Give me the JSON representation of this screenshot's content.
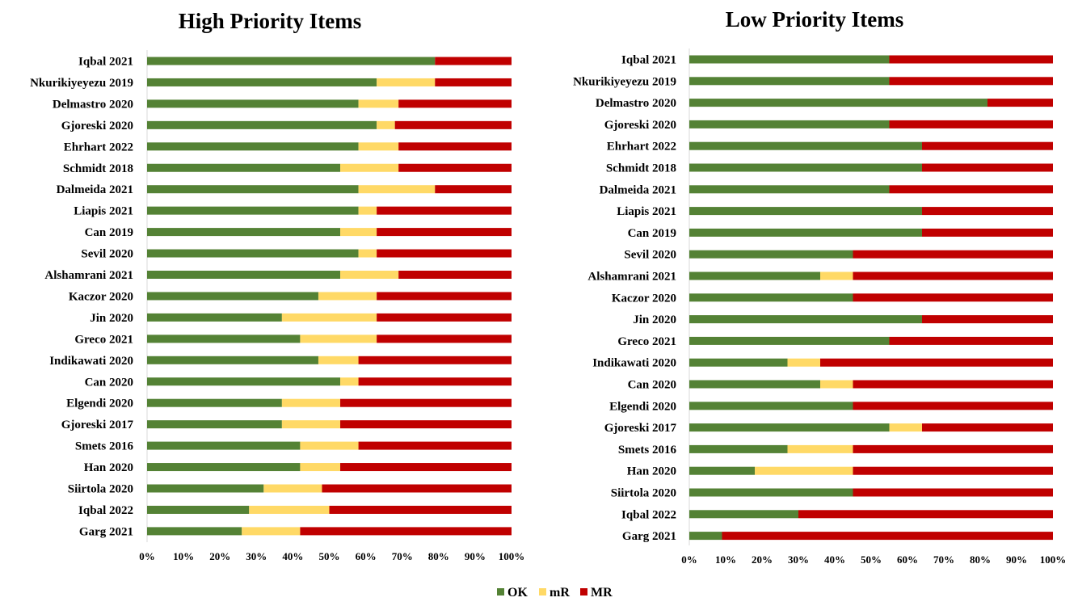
{
  "chart_data": [
    {
      "type": "bar",
      "orientation": "horizontal",
      "stacked": "percent",
      "title": "High Priority Items",
      "categories": [
        "Iqbal 2021",
        "Nkurikiyeyezu 2019",
        "Delmastro 2020",
        "Gjoreski 2020",
        "Ehrhart 2022",
        "Schmidt 2018",
        "Dalmeida 2021",
        "Liapis 2021",
        "Can 2019",
        "Sevil 2020",
        "Alshamrani 2021",
        "Kaczor 2020",
        "Jin 2020",
        "Greco 2021",
        "Indikawati 2020",
        "Can 2020",
        "Elgendi 2020",
        "Gjoreski 2017",
        "Smets 2016",
        "Han 2020",
        "Siirtola 2020",
        "Iqbal 2022",
        "Garg 2021"
      ],
      "series": [
        {
          "name": "OK",
          "color": "#548235",
          "values": [
            79,
            63,
            58,
            63,
            58,
            53,
            58,
            58,
            53,
            58,
            53,
            47,
            37,
            42,
            47,
            53,
            37,
            37,
            42,
            42,
            32,
            28,
            26
          ]
        },
        {
          "name": "mR",
          "color": "#FFD966",
          "values": [
            0,
            16,
            11,
            5,
            11,
            16,
            21,
            5,
            10,
            5,
            16,
            16,
            26,
            21,
            11,
            5,
            16,
            16,
            16,
            11,
            16,
            22,
            16
          ]
        },
        {
          "name": "MR",
          "color": "#C00000",
          "values": [
            21,
            21,
            31,
            32,
            31,
            31,
            21,
            37,
            37,
            37,
            31,
            37,
            37,
            37,
            42,
            42,
            47,
            47,
            42,
            47,
            52,
            50,
            58
          ]
        }
      ],
      "xticks": [
        "0%",
        "10%",
        "20%",
        "30%",
        "40%",
        "50%",
        "60%",
        "70%",
        "80%",
        "90%",
        "100%"
      ],
      "xlim": [
        0,
        100
      ]
    },
    {
      "type": "bar",
      "orientation": "horizontal",
      "stacked": "percent",
      "title": "Low Priority Items",
      "categories": [
        "Iqbal 2021",
        "Nkurikiyeyezu 2019",
        "Delmastro 2020",
        "Gjoreski 2020",
        "Ehrhart 2022",
        "Schmidt 2018",
        "Dalmeida 2021",
        "Liapis 2021",
        "Can 2019",
        "Sevil 2020",
        "Alshamrani 2021",
        "Kaczor 2020",
        "Jin 2020",
        "Greco 2021",
        "Indikawati 2020",
        "Can 2020",
        "Elgendi 2020",
        "Gjoreski 2017",
        "Smets 2016",
        "Han 2020",
        "Siirtola 2020",
        "Iqbal 2022",
        "Garg 2021"
      ],
      "series": [
        {
          "name": "OK",
          "color": "#548235",
          "values": [
            55,
            55,
            82,
            55,
            64,
            64,
            55,
            64,
            64,
            45,
            36,
            45,
            64,
            55,
            27,
            36,
            45,
            55,
            27,
            18,
            45,
            30,
            9
          ]
        },
        {
          "name": "mR",
          "color": "#FFD966",
          "values": [
            0,
            0,
            0,
            0,
            0,
            0,
            0,
            0,
            0,
            0,
            9,
            0,
            0,
            0,
            9,
            9,
            0,
            9,
            18,
            27,
            0,
            0,
            0
          ]
        },
        {
          "name": "MR",
          "color": "#C00000",
          "values": [
            45,
            45,
            18,
            45,
            36,
            36,
            45,
            36,
            36,
            55,
            55,
            55,
            36,
            45,
            64,
            55,
            55,
            36,
            55,
            55,
            55,
            70,
            91
          ]
        }
      ],
      "xticks": [
        "0%",
        "10%",
        "20%",
        "30%",
        "40%",
        "50%",
        "60%",
        "70%",
        "80%",
        "90%",
        "100%"
      ],
      "xlim": [
        0,
        100
      ]
    }
  ],
  "legend": {
    "placement": "bottom-center",
    "items": [
      {
        "label": "OK",
        "color": "#548235"
      },
      {
        "label": "mR",
        "color": "#FFD966"
      },
      {
        "label": "MR",
        "color": "#C00000"
      }
    ]
  }
}
